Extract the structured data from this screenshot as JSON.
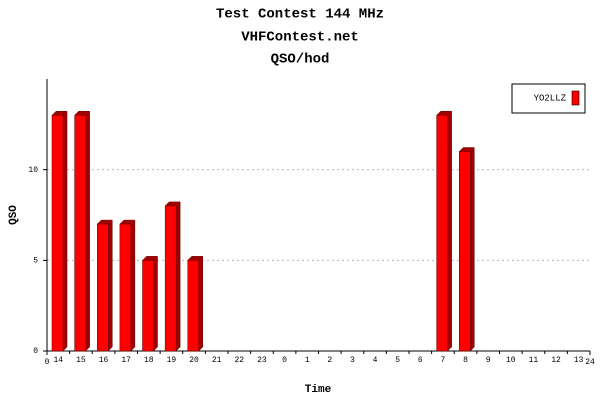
{
  "chart_data": {
    "type": "bar",
    "title": "Test Contest 144 MHz",
    "subtitle": "VHFContest.net",
    "subtitle2": "QSO/hod",
    "x_label": "Time",
    "y_label": "QSO",
    "categories": [
      "14",
      "15",
      "16",
      "17",
      "18",
      "19",
      "20",
      "21",
      "22",
      "23",
      "0",
      "1",
      "2",
      "3",
      "4",
      "5",
      "6",
      "7",
      "8",
      "9",
      "10",
      "11",
      "12",
      "13"
    ],
    "series": [
      {
        "name": "YO2LLZ",
        "color": "#ff0000",
        "values": [
          13,
          13,
          7,
          7,
          5,
          8,
          5,
          0,
          0,
          0,
          0,
          0,
          0,
          0,
          0,
          0,
          0,
          13,
          11,
          0,
          0,
          0,
          0,
          0
        ]
      }
    ],
    "xlim": [
      0,
      24
    ],
    "xticks": [
      0,
      24
    ],
    "ylim": [
      0,
      15
    ],
    "yticks": [
      0,
      5,
      10
    ],
    "grid": true,
    "legend": "upper right"
  }
}
